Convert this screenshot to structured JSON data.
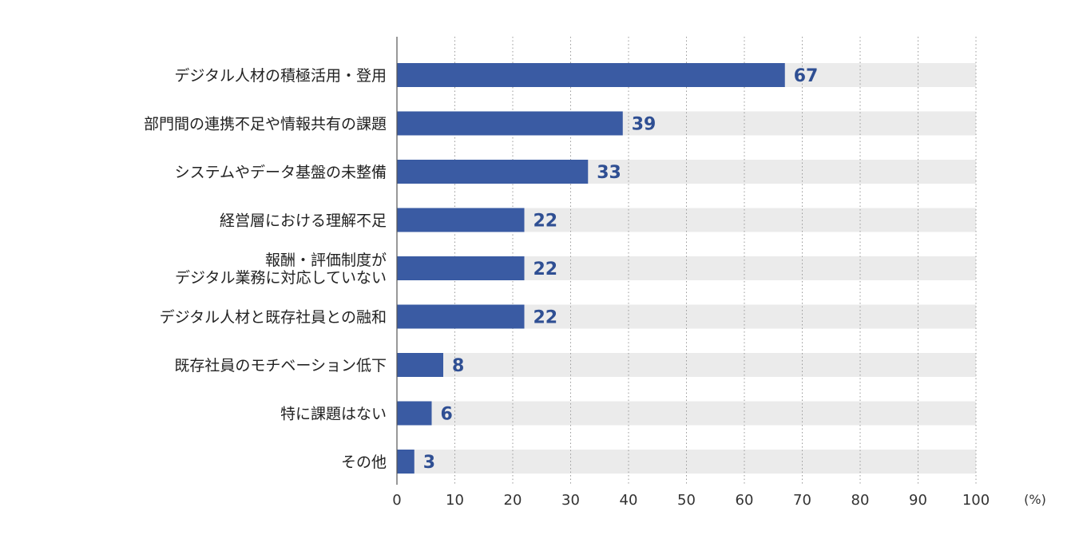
{
  "chart_data": {
    "type": "bar",
    "orientation": "horizontal",
    "categories": [
      [
        "デジタル人材の積極活用・登用"
      ],
      [
        "部門間の連携不足や情報共有の課題"
      ],
      [
        "システムやデータ基盤の未整備"
      ],
      [
        "経営層における理解不足"
      ],
      [
        "報酬・評価制度が",
        "デジタル業務に対応していない"
      ],
      [
        "デジタル人材と既存社員との融和"
      ],
      [
        "既存社員のモチベーション低下"
      ],
      [
        "特に課題はない"
      ],
      [
        "その他"
      ]
    ],
    "values": [
      67,
      39,
      33,
      22,
      22,
      22,
      8,
      6,
      3
    ],
    "xlim": [
      0,
      100
    ],
    "xticks": [
      0,
      10,
      20,
      30,
      40,
      50,
      60,
      70,
      80,
      90,
      100
    ],
    "unit": "(%)",
    "grid": "vertical-dotted",
    "bar_color": "#3a5ba3",
    "track_color": "#ebebeb",
    "value_label_color": "#2f4f93"
  }
}
